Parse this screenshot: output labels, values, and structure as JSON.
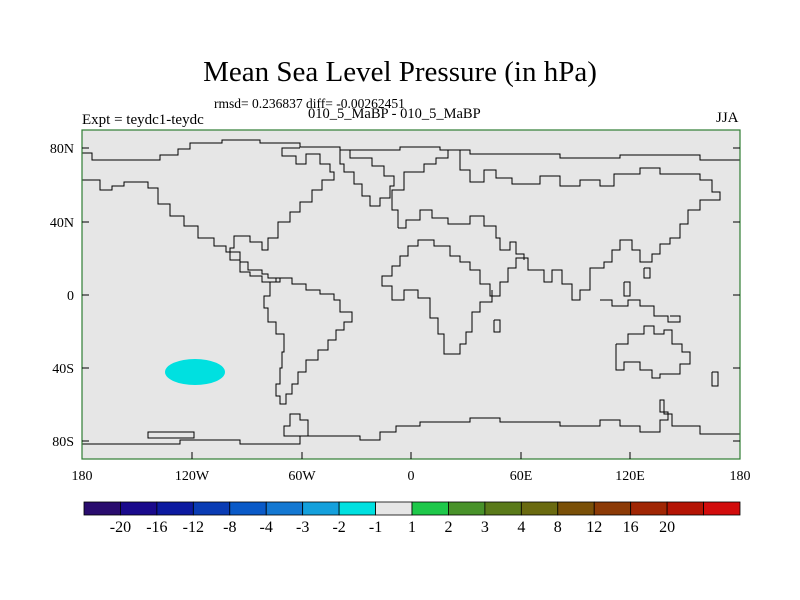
{
  "title": "Mean Sea Level Pressure (in hPa)",
  "stats_text": "rmsd= 0.236837 diff= -0.00262451",
  "subtitle": "010_5_MaBP - 010_5_MaBP",
  "experiment_label": "Expt = teydc1-teydc",
  "season": "JJA",
  "map": {
    "background_color": "#e6e6e6",
    "frame_color": "#2e7d32",
    "lat_ticks": [
      "80N",
      "40N",
      "0",
      "40S",
      "80S"
    ],
    "lon_ticks": [
      "180",
      "120W",
      "60W",
      "0",
      "60E",
      "120E",
      "180"
    ],
    "anomaly": {
      "lon": -120,
      "lat": -41,
      "bin": "-2 to -1",
      "color": "#00e0e0"
    }
  },
  "colorbar": {
    "colors": [
      "#2a0c6e",
      "#1a0a8c",
      "#0c1aa0",
      "#0a3cb4",
      "#0a5ac8",
      "#1478d2",
      "#14a0dc",
      "#00e0e0",
      "#e6e6e6",
      "#1ec84a",
      "#48922a",
      "#5a7a1a",
      "#6a6a10",
      "#7a5008",
      "#8c3a06",
      "#a02604",
      "#b41404",
      "#d20c0c"
    ],
    "labels": [
      "-20",
      "-16",
      "-12",
      "-8",
      "-4",
      "-3",
      "-2",
      "-1",
      "1",
      "2",
      "3",
      "4",
      "8",
      "12",
      "16",
      "20"
    ]
  }
}
